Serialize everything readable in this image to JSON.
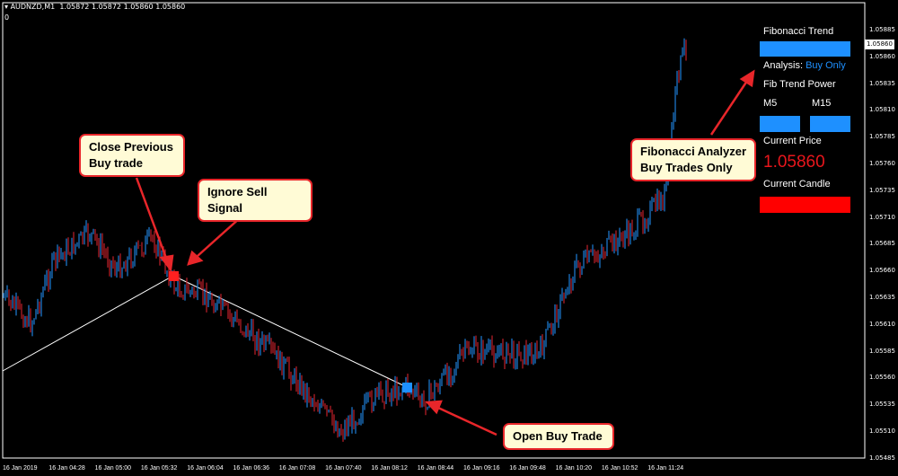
{
  "header": {
    "symbol": "AUDNZD,M1",
    "ohlc": "1.05872 1.05872 1.05860 1.05860",
    "sub": "0"
  },
  "y_axis": [
    "1.05885",
    "1.05860",
    "1.05835",
    "1.05810",
    "1.05785",
    "1.05760",
    "1.05735",
    "1.05710",
    "1.05685",
    "1.05660",
    "1.05635",
    "1.05610",
    "1.05585",
    "1.05560",
    "1.05535",
    "1.05510",
    "1.05485"
  ],
  "current_price_label": "1.05860",
  "x_axis": [
    "16 Jan 2019",
    "16 Jan 04:28",
    "16 Jan 05:00",
    "16 Jan 05:32",
    "16 Jan 06:04",
    "16 Jan 06:36",
    "16 Jan 07:08",
    "16 Jan 07:40",
    "16 Jan 08:12",
    "16 Jan 08:44",
    "16 Jan 09:16",
    "16 Jan 09:48",
    "16 Jan 10:20",
    "16 Jan 10:52",
    "16 Jan 11:24"
  ],
  "panel": {
    "title": "Fibonacci Trend",
    "analysis_label": "Analysis:",
    "analysis_value": "Buy Only",
    "power_label": "Fib Trend Power",
    "m5": "M5",
    "m15": "M15",
    "price_label": "Current Price",
    "price": "1.05860",
    "candle_label": "Current Candle"
  },
  "colors": {
    "buy": "#1e90ff",
    "sell": "#ff0000",
    "bull_candle": "#1e7fd8",
    "bear_candle": "#c0202a"
  },
  "callouts": {
    "close": "Close Previous\nBuy trade",
    "ignore": "Ignore Sell Signal",
    "analyzer": "Fibonacci Analyzer\nBuy Trades Only",
    "open": "Open Buy Trade"
  }
}
